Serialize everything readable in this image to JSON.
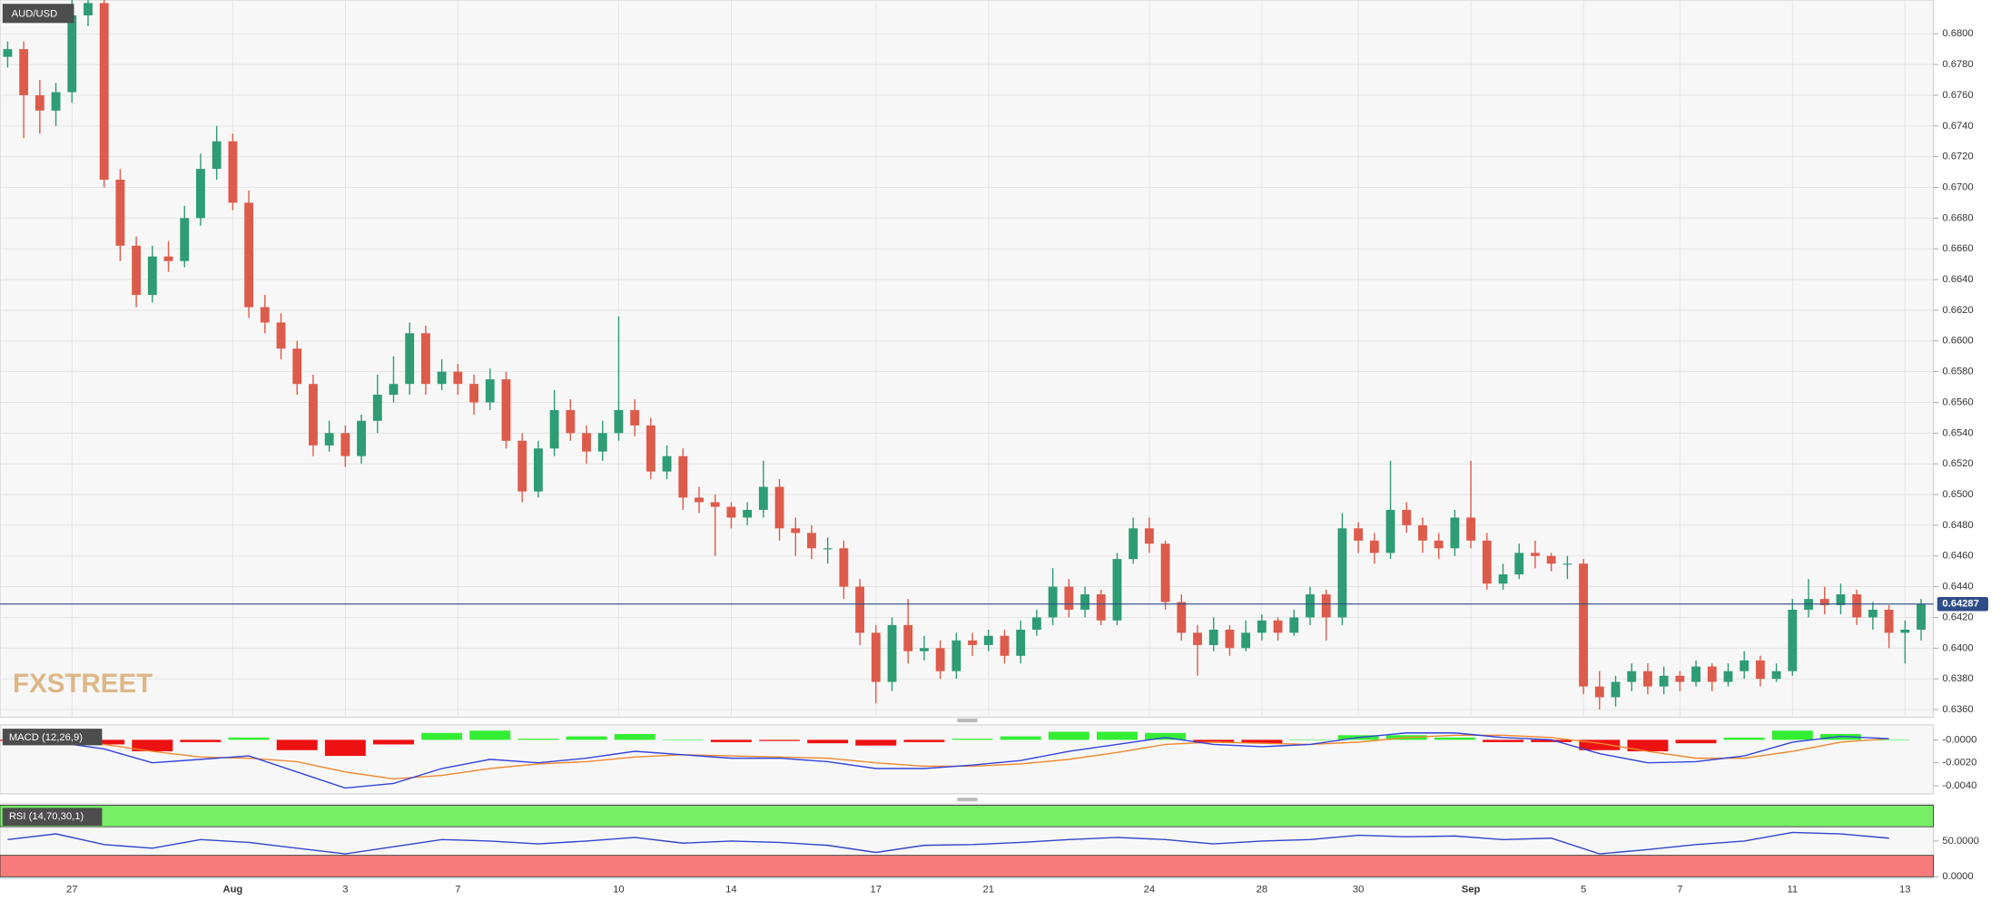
{
  "chart_data": [
    {
      "type": "candlestick",
      "title": "AUD/USD",
      "watermark": "FXSTREET",
      "grid": true,
      "up_color": "#2e9c74",
      "down_color": "#dd5b4b",
      "last_price": 0.64287,
      "last_price_color": "#2d4c88",
      "categories": [
        null,
        null,
        null,
        null,
        "27",
        null,
        null,
        null,
        null,
        null,
        null,
        null,
        null,
        null,
        "Aug",
        null,
        null,
        null,
        null,
        null,
        null,
        "3",
        null,
        null,
        null,
        null,
        null,
        null,
        "7",
        null,
        null,
        null,
        null,
        null,
        null,
        null,
        null,
        null,
        "10",
        null,
        null,
        null,
        null,
        null,
        null,
        "14",
        null,
        null,
        null,
        null,
        null,
        null,
        null,
        null,
        "17",
        null,
        null,
        null,
        null,
        null,
        null,
        "21",
        null,
        null,
        null,
        null,
        null,
        null,
        null,
        null,
        null,
        "24",
        null,
        null,
        null,
        null,
        null,
        null,
        "28",
        null,
        null,
        null,
        null,
        null,
        "30",
        null,
        null,
        null,
        null,
        null,
        null,
        "Sep",
        null,
        null,
        null,
        null,
        null,
        null,
        "5",
        null,
        null,
        null,
        null,
        null,
        "7",
        null,
        null,
        null,
        null,
        null,
        null,
        "11",
        null,
        null,
        null,
        null,
        null,
        null,
        "13",
        null
      ],
      "open": [
        0.6785,
        0.679,
        0.676,
        0.675,
        0.6762,
        0.6812,
        0.682,
        0.6705,
        0.6662,
        0.663,
        0.6655,
        0.6652,
        0.668,
        0.6712,
        0.673,
        0.669,
        0.6622,
        0.6612,
        0.6595,
        0.6572,
        0.6532,
        0.654,
        0.6525,
        0.6548,
        0.6565,
        0.6572,
        0.6605,
        0.6572,
        0.658,
        0.6572,
        0.656,
        0.6575,
        0.6535,
        0.6502,
        0.653,
        0.6555,
        0.654,
        0.6528,
        0.654,
        0.6555,
        0.6545,
        0.6515,
        0.6525,
        0.6498,
        0.6495,
        0.6492,
        0.6485,
        0.649,
        0.6505,
        0.6478,
        0.6475,
        0.6465,
        0.6465,
        0.644,
        0.641,
        0.6378,
        0.6415,
        0.6398,
        0.64,
        0.6385,
        0.6405,
        0.6402,
        0.6408,
        0.6395,
        0.6412,
        0.642,
        0.644,
        0.6425,
        0.6435,
        0.6418,
        0.6458,
        0.6478,
        0.6468,
        0.643,
        0.641,
        0.6402,
        0.6412,
        0.64,
        0.641,
        0.6418,
        0.641,
        0.642,
        0.6435,
        0.642,
        0.6478,
        0.647,
        0.6462,
        0.649,
        0.648,
        0.647,
        0.6465,
        0.6485,
        0.647,
        0.6442,
        0.6448,
        0.6462,
        0.646,
        0.6455,
        0.6455,
        0.6375,
        0.6368,
        0.6378,
        0.6385,
        0.6375,
        0.6382,
        0.6378,
        0.6388,
        0.6378,
        0.6385,
        0.6392,
        0.638,
        0.6385,
        0.6425,
        0.6432,
        0.6428,
        0.6435,
        0.642,
        0.6425,
        0.641,
        0.6412
      ],
      "high": [
        0.6795,
        0.6795,
        0.677,
        0.6768,
        0.6825,
        0.684,
        0.6822,
        0.6712,
        0.6668,
        0.6662,
        0.6665,
        0.6688,
        0.6722,
        0.674,
        0.6735,
        0.6698,
        0.663,
        0.6618,
        0.66,
        0.6578,
        0.6548,
        0.6545,
        0.6552,
        0.6578,
        0.659,
        0.6612,
        0.661,
        0.6588,
        0.6585,
        0.6578,
        0.6582,
        0.658,
        0.654,
        0.6535,
        0.6568,
        0.6562,
        0.6545,
        0.6548,
        0.6616,
        0.6562,
        0.655,
        0.6532,
        0.653,
        0.6505,
        0.65,
        0.6495,
        0.6495,
        0.6522,
        0.651,
        0.6485,
        0.648,
        0.6472,
        0.647,
        0.6445,
        0.6415,
        0.642,
        0.6432,
        0.6408,
        0.6405,
        0.641,
        0.641,
        0.6412,
        0.6412,
        0.6418,
        0.6425,
        0.6452,
        0.6445,
        0.644,
        0.6438,
        0.6462,
        0.6485,
        0.6485,
        0.647,
        0.6435,
        0.6415,
        0.642,
        0.6415,
        0.6418,
        0.6422,
        0.642,
        0.6425,
        0.644,
        0.6438,
        0.6488,
        0.6482,
        0.6475,
        0.6522,
        0.6495,
        0.6485,
        0.6475,
        0.649,
        0.6522,
        0.6475,
        0.6455,
        0.6468,
        0.647,
        0.6462,
        0.646,
        0.6458,
        0.6385,
        0.6382,
        0.639,
        0.639,
        0.6388,
        0.6385,
        0.6392,
        0.639,
        0.639,
        0.6398,
        0.6395,
        0.639,
        0.6432,
        0.6445,
        0.644,
        0.6442,
        0.6438,
        0.643,
        0.6428,
        0.6418,
        0.6432
      ],
      "low": [
        0.6778,
        0.6732,
        0.6735,
        0.674,
        0.6755,
        0.6805,
        0.67,
        0.6652,
        0.6622,
        0.6625,
        0.6645,
        0.6648,
        0.6675,
        0.6705,
        0.6685,
        0.6615,
        0.6605,
        0.6588,
        0.6565,
        0.6525,
        0.6528,
        0.6518,
        0.652,
        0.654,
        0.656,
        0.6565,
        0.6565,
        0.6568,
        0.6565,
        0.6552,
        0.6555,
        0.653,
        0.6495,
        0.6498,
        0.6525,
        0.6535,
        0.652,
        0.6522,
        0.6535,
        0.6538,
        0.651,
        0.651,
        0.649,
        0.6488,
        0.646,
        0.6478,
        0.648,
        0.6485,
        0.647,
        0.646,
        0.6458,
        0.6455,
        0.6432,
        0.6402,
        0.6364,
        0.6372,
        0.639,
        0.6392,
        0.638,
        0.638,
        0.6395,
        0.6398,
        0.639,
        0.639,
        0.6408,
        0.6415,
        0.642,
        0.642,
        0.6415,
        0.6415,
        0.6455,
        0.6462,
        0.6425,
        0.6405,
        0.6382,
        0.6398,
        0.6395,
        0.6398,
        0.6405,
        0.6405,
        0.6408,
        0.6415,
        0.6405,
        0.6415,
        0.6462,
        0.6455,
        0.6458,
        0.6475,
        0.6462,
        0.6458,
        0.646,
        0.6465,
        0.6438,
        0.6438,
        0.6445,
        0.6452,
        0.645,
        0.6445,
        0.637,
        0.636,
        0.6362,
        0.6372,
        0.637,
        0.637,
        0.6372,
        0.6375,
        0.6372,
        0.6375,
        0.638,
        0.6375,
        0.6378,
        0.6382,
        0.642,
        0.6422,
        0.6422,
        0.6415,
        0.6412,
        0.64,
        0.639,
        0.6405
      ],
      "close": [
        0.679,
        0.676,
        0.675,
        0.6762,
        0.6812,
        0.682,
        0.6705,
        0.6662,
        0.663,
        0.6655,
        0.6652,
        0.668,
        0.6712,
        0.673,
        0.669,
        0.6622,
        0.6612,
        0.6595,
        0.6572,
        0.6532,
        0.654,
        0.6525,
        0.6548,
        0.6565,
        0.6572,
        0.6605,
        0.6572,
        0.658,
        0.6572,
        0.656,
        0.6575,
        0.6535,
        0.6502,
        0.653,
        0.6555,
        0.654,
        0.6528,
        0.654,
        0.6555,
        0.6545,
        0.6515,
        0.6525,
        0.6498,
        0.6495,
        0.6492,
        0.6485,
        0.649,
        0.6505,
        0.6478,
        0.6475,
        0.6465,
        0.6465,
        0.644,
        0.641,
        0.6378,
        0.6415,
        0.6398,
        0.64,
        0.6385,
        0.6405,
        0.6402,
        0.6408,
        0.6395,
        0.6412,
        0.642,
        0.644,
        0.6425,
        0.6435,
        0.6418,
        0.6458,
        0.6478,
        0.6468,
        0.643,
        0.641,
        0.6402,
        0.6412,
        0.64,
        0.641,
        0.6418,
        0.641,
        0.642,
        0.6435,
        0.642,
        0.6478,
        0.647,
        0.6462,
        0.649,
        0.648,
        0.647,
        0.6465,
        0.6485,
        0.647,
        0.6442,
        0.6448,
        0.6462,
        0.646,
        0.6455,
        0.6455,
        0.6375,
        0.6368,
        0.6378,
        0.6385,
        0.6375,
        0.6382,
        0.6378,
        0.6388,
        0.6378,
        0.6385,
        0.6392,
        0.638,
        0.6385,
        0.6425,
        0.6432,
        0.6428,
        0.6435,
        0.642,
        0.6425,
        0.641,
        0.6412,
        0.64287
      ],
      "ylim": [
        0.6355,
        0.6822
      ],
      "yticks": [
        {
          "value": 0.636,
          "label": "0.6360"
        },
        {
          "value": 0.638,
          "label": "0.6380"
        },
        {
          "value": 0.64,
          "label": "0.6400"
        },
        {
          "value": 0.642,
          "label": "0.6420"
        },
        {
          "value": 0.644,
          "label": "0.6440"
        },
        {
          "value": 0.646,
          "label": "0.6460"
        },
        {
          "value": 0.648,
          "label": "0.6480"
        },
        {
          "value": 0.65,
          "label": "0.6500"
        },
        {
          "value": 0.652,
          "label": "0.6520"
        },
        {
          "value": 0.654,
          "label": "0.6540"
        },
        {
          "value": 0.656,
          "label": "0.6560"
        },
        {
          "value": 0.658,
          "label": "0.6580"
        },
        {
          "value": 0.66,
          "label": "0.6600"
        },
        {
          "value": 0.662,
          "label": "0.6620"
        },
        {
          "value": 0.664,
          "label": "0.6640"
        },
        {
          "value": 0.666,
          "label": "0.6660"
        },
        {
          "value": 0.668,
          "label": "0.6680"
        },
        {
          "value": 0.67,
          "label": "0.6700"
        },
        {
          "value": 0.672,
          "label": "0.6720"
        },
        {
          "value": 0.674,
          "label": "0.6740"
        },
        {
          "value": 0.676,
          "label": "0.6760"
        },
        {
          "value": 0.678,
          "label": "0.6780"
        },
        {
          "value": 0.68,
          "label": "0.6800"
        }
      ]
    },
    {
      "type": "macd",
      "title": "MACD (12,26,9)",
      "macd_color": "#3344dd",
      "signal_color": "#f0882e",
      "pos_color": "#33ee33",
      "neg_color": "#ee1111",
      "x": [
        0,
        3,
        6,
        9,
        12,
        15,
        18,
        21,
        24,
        27,
        30,
        33,
        36,
        39,
        42,
        45,
        48,
        51,
        54,
        57,
        60,
        63,
        66,
        69,
        72,
        75,
        78,
        81,
        84,
        87,
        90,
        93,
        96,
        99,
        102,
        105,
        108,
        111,
        114,
        117
      ],
      "macd": [
        -0.0004,
        -0.0002,
        -0.0008,
        -0.002,
        -0.0017,
        -0.0014,
        -0.0028,
        -0.0042,
        -0.0038,
        -0.0025,
        -0.0017,
        -0.002,
        -0.0016,
        -0.001,
        -0.0013,
        -0.0016,
        -0.0016,
        -0.0019,
        -0.0025,
        -0.0025,
        -0.0022,
        -0.0018,
        -0.001,
        -0.0004,
        0.0002,
        -0.0004,
        -0.0006,
        -0.0004,
        0.0002,
        0.0006,
        0.0006,
        0.0002,
        0.0,
        -0.0012,
        -0.002,
        -0.0019,
        -0.0014,
        -0.0002,
        0.0003,
        0.0001
      ],
      "signal": [
        -0.0003,
        -0.0003,
        -0.0004,
        -0.001,
        -0.0015,
        -0.0016,
        -0.0019,
        -0.0028,
        -0.0034,
        -0.0031,
        -0.0025,
        -0.0021,
        -0.0019,
        -0.0015,
        -0.0013,
        -0.0014,
        -0.0015,
        -0.0016,
        -0.002,
        -0.0023,
        -0.0023,
        -0.0021,
        -0.0017,
        -0.0011,
        -0.0004,
        -0.0002,
        -0.0003,
        -0.0004,
        -0.0002,
        0.0002,
        0.0004,
        0.0004,
        0.0002,
        -0.0003,
        -0.001,
        -0.0016,
        -0.0016,
        -0.001,
        -0.0002,
        0.0001
      ],
      "histogram": [
        -0.0001,
        0.0001,
        -0.0004,
        -0.001,
        -0.0002,
        0.0002,
        -0.0009,
        -0.0014,
        -0.0004,
        0.0006,
        0.0008,
        0.0001,
        0.0003,
        0.0005,
        0.0,
        -0.0002,
        -0.0001,
        -0.0003,
        -0.0005,
        -0.0002,
        0.0001,
        0.0003,
        0.0007,
        0.0007,
        0.0006,
        -0.0002,
        -0.0003,
        0.0,
        0.0004,
        0.0004,
        0.0002,
        -0.0002,
        -0.0002,
        -0.0009,
        -0.001,
        -0.0003,
        0.0002,
        0.0008,
        0.0005,
        0.0
      ],
      "ylim": [
        -0.0047,
        0.0013
      ],
      "yticks": [
        {
          "value": 0,
          "label": "-0.0000"
        },
        {
          "value": -0.002,
          "label": "-0.0020"
        },
        {
          "value": -0.004,
          "label": "-0.0040"
        }
      ]
    },
    {
      "type": "rsi",
      "title": "RSI (14,70,30,1)",
      "color": "#3344cc",
      "overbought": 70,
      "oversold": 30,
      "overbought_color": "#77ee66",
      "oversold_color": "#f77b7b",
      "x": [
        0,
        3,
        6,
        9,
        12,
        15,
        18,
        21,
        24,
        27,
        30,
        33,
        36,
        39,
        42,
        45,
        48,
        51,
        54,
        57,
        60,
        63,
        66,
        69,
        72,
        75,
        78,
        81,
        84,
        87,
        90,
        93,
        96,
        99,
        102,
        105,
        108,
        111,
        114,
        117
      ],
      "values": [
        52,
        60,
        45,
        40,
        52,
        48,
        40,
        32,
        42,
        52,
        50,
        46,
        50,
        55,
        47,
        50,
        48,
        44,
        34,
        44,
        45,
        48,
        52,
        55,
        52,
        46,
        50,
        52,
        58,
        56,
        57,
        52,
        54,
        32,
        38,
        45,
        50,
        62,
        60,
        54
      ],
      "ylim": [
        0,
        100
      ],
      "yticks": [
        {
          "value": 50,
          "label": "50.0000"
        },
        {
          "value": 0,
          "label": "0.0000"
        }
      ]
    }
  ]
}
